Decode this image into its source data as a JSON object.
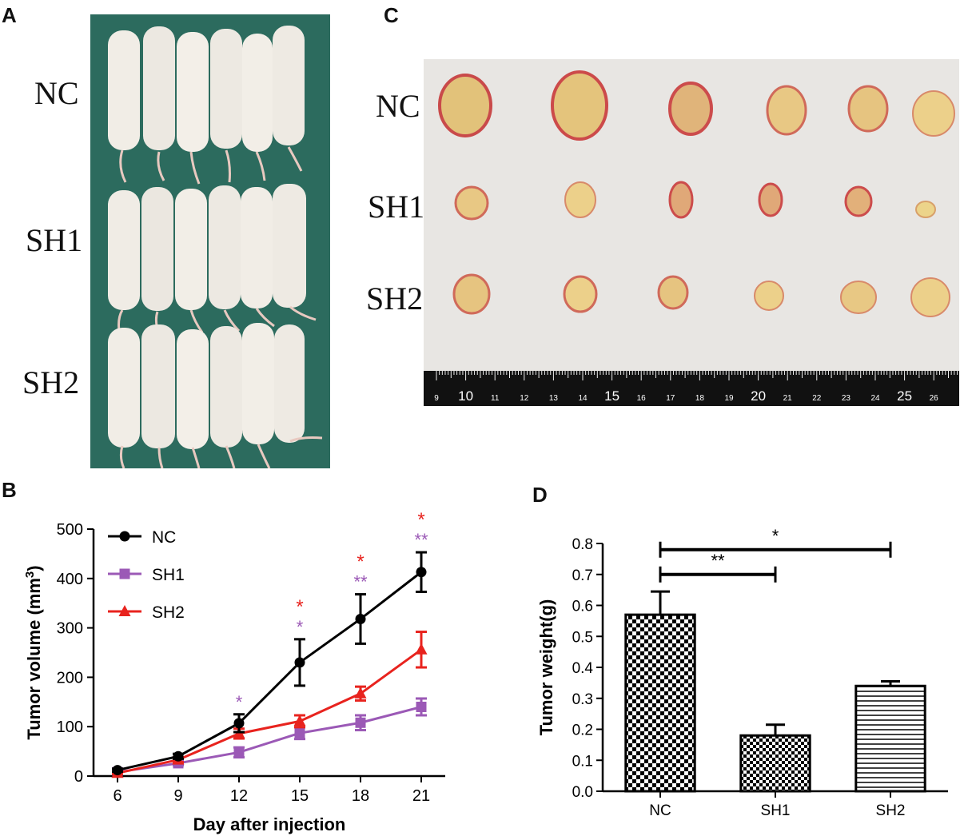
{
  "panels": {
    "a": "A",
    "b": "B",
    "c": "C",
    "d": "D"
  },
  "photo_a": {
    "labels": [
      "NC",
      "SH1",
      "SH2"
    ]
  },
  "photo_c": {
    "labels": [
      "NC",
      "SH1",
      "SH2"
    ],
    "ruler_ticks": [
      "9",
      "10",
      "11",
      "12",
      "13",
      "14",
      "15",
      "16",
      "17",
      "18",
      "19",
      "20",
      "21",
      "22",
      "23",
      "24",
      "25",
      "26"
    ]
  },
  "colors": {
    "nc": "#000000",
    "sh1": "#9b59b6",
    "sh2": "#e8231e",
    "green_cloth": "#2c6b5e",
    "paper": "#e8e6e3"
  },
  "chart_data": [
    {
      "type": "line",
      "ylabel_prefix": "Tumor volume (mm",
      "ylabel_sup": "3",
      "ylabel_suffix": ")",
      "xlabel": "Day after injection",
      "x": [
        6,
        9,
        12,
        15,
        18,
        21
      ],
      "xticks": [
        "6",
        "9",
        "12",
        "15",
        "18",
        "21"
      ],
      "yticks": [
        "0",
        "100",
        "200",
        "300",
        "400",
        "500"
      ],
      "ylim": [
        0,
        500
      ],
      "legend_position": "top-left",
      "series": [
        {
          "name": "NC",
          "marker": "circle",
          "values": [
            12,
            40,
            107,
            230,
            318,
            413
          ],
          "errors": [
            3,
            5,
            18,
            47,
            50,
            40
          ]
        },
        {
          "name": "SH1",
          "marker": "square",
          "values": [
            8,
            26,
            48,
            87,
            108,
            140
          ],
          "errors": [
            2,
            4,
            10,
            12,
            15,
            17
          ]
        },
        {
          "name": "SH2",
          "marker": "triangle",
          "values": [
            6,
            33,
            86,
            111,
            167,
            256
          ],
          "errors": [
            2,
            5,
            10,
            12,
            14,
            36
          ]
        }
      ],
      "significance": [
        {
          "x": 12,
          "purple": "*",
          "red": ""
        },
        {
          "x": 15,
          "purple": "*",
          "red": "*"
        },
        {
          "x": 18,
          "purple": "**",
          "red": "*"
        },
        {
          "x": 21,
          "purple": "**",
          "red": "*"
        }
      ]
    },
    {
      "type": "bar",
      "ylabel": "Tumor weight(g)",
      "categories": [
        "NC",
        "SH1",
        "SH2"
      ],
      "values": [
        0.57,
        0.18,
        0.34
      ],
      "errors": [
        0.075,
        0.035,
        0.015
      ],
      "fill_patterns": [
        "checker-large",
        "checker-small",
        "horizontal-lines"
      ],
      "yticks": [
        "0.0",
        "0.1",
        "0.2",
        "0.3",
        "0.4",
        "0.5",
        "0.6",
        "0.7",
        "0.8"
      ],
      "ylim": [
        0,
        0.8
      ],
      "significance": [
        {
          "from": "NC",
          "to": "SH1",
          "label": "**",
          "level": 0.7
        },
        {
          "from": "NC",
          "to": "SH2",
          "label": "*",
          "level": 0.78
        }
      ]
    }
  ]
}
